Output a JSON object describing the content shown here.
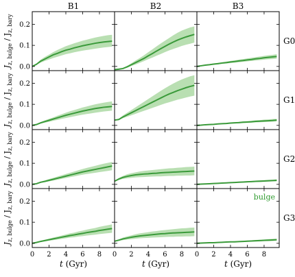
{
  "figure": {
    "columns": [
      "B1",
      "B2",
      "B3"
    ],
    "rows": [
      "G0",
      "G1",
      "G2",
      "G3"
    ],
    "ylabel_main": "J",
    "ylabel_sub1": "z, bulge",
    "ylabel_mid": " / J",
    "ylabel_sub2": "z, bary",
    "xlabel": "t (Gyr)",
    "legend_label": "bulge"
  },
  "colors": {
    "line": "#3a9a3a",
    "band": "#b9dfb2",
    "legend_text": "#2e9a2e"
  },
  "chart_data": {
    "type": "line",
    "grid": false,
    "x_ticks": [
      0,
      2,
      4,
      6,
      8
    ],
    "y_ticks": [
      0.0,
      0.1,
      0.2
    ],
    "xlim": [
      0,
      9.8
    ],
    "ylim": [
      -0.02,
      0.26
    ],
    "x": [
      0,
      0.5,
      1,
      1.5,
      2,
      2.5,
      3,
      3.5,
      4,
      4.5,
      5,
      5.5,
      6,
      6.5,
      7,
      7.5,
      8,
      8.5,
      9,
      9.5
    ],
    "legend": {
      "label": "bulge",
      "panel": "B3-G3",
      "loc": "top-right"
    },
    "panels": [
      {
        "col": "B1",
        "row": "G0",
        "mean": [
          0.0,
          0.01,
          0.025,
          0.035,
          0.045,
          0.055,
          0.062,
          0.07,
          0.077,
          0.082,
          0.088,
          0.093,
          0.098,
          0.102,
          0.106,
          0.11,
          0.113,
          0.116,
          0.118,
          0.12
        ],
        "lower": [
          0.0,
          0.008,
          0.018,
          0.026,
          0.033,
          0.04,
          0.046,
          0.052,
          0.058,
          0.062,
          0.067,
          0.071,
          0.075,
          0.078,
          0.081,
          0.084,
          0.087,
          0.09,
          0.092,
          0.094
        ],
        "upper": [
          0.0,
          0.013,
          0.032,
          0.045,
          0.056,
          0.068,
          0.078,
          0.087,
          0.096,
          0.103,
          0.11,
          0.116,
          0.122,
          0.127,
          0.132,
          0.137,
          0.141,
          0.145,
          0.148,
          0.15
        ]
      },
      {
        "col": "B2",
        "row": "G0",
        "mean": [
          -0.015,
          -0.013,
          -0.01,
          -0.002,
          0.008,
          0.018,
          0.028,
          0.038,
          0.05,
          0.061,
          0.073,
          0.084,
          0.095,
          0.106,
          0.116,
          0.125,
          0.133,
          0.14,
          0.146,
          0.152
        ],
        "lower": [
          -0.015,
          -0.014,
          -0.012,
          -0.006,
          0.002,
          0.009,
          0.017,
          0.025,
          0.034,
          0.042,
          0.051,
          0.059,
          0.068,
          0.076,
          0.083,
          0.09,
          0.097,
          0.103,
          0.108,
          0.113
        ],
        "upper": [
          -0.015,
          -0.012,
          -0.008,
          0.003,
          0.015,
          0.028,
          0.04,
          0.053,
          0.067,
          0.081,
          0.095,
          0.109,
          0.122,
          0.135,
          0.148,
          0.16,
          0.17,
          0.178,
          0.185,
          0.19
        ]
      },
      {
        "col": "B3",
        "row": "G0",
        "mean": [
          0.0,
          0.003,
          0.006,
          0.008,
          0.011,
          0.013,
          0.016,
          0.018,
          0.021,
          0.023,
          0.026,
          0.028,
          0.031,
          0.033,
          0.036,
          0.038,
          0.041,
          0.043,
          0.045,
          0.047
        ],
        "lower": [
          0.0,
          0.002,
          0.004,
          0.006,
          0.008,
          0.01,
          0.012,
          0.014,
          0.016,
          0.018,
          0.02,
          0.022,
          0.024,
          0.026,
          0.028,
          0.03,
          0.032,
          0.034,
          0.035,
          0.037
        ],
        "upper": [
          0.0,
          0.004,
          0.008,
          0.011,
          0.014,
          0.017,
          0.02,
          0.023,
          0.026,
          0.029,
          0.032,
          0.035,
          0.038,
          0.041,
          0.044,
          0.047,
          0.05,
          0.053,
          0.055,
          0.058
        ]
      },
      {
        "col": "B1",
        "row": "G1",
        "mean": [
          0.0,
          0.004,
          0.012,
          0.018,
          0.024,
          0.03,
          0.036,
          0.042,
          0.048,
          0.053,
          0.058,
          0.063,
          0.068,
          0.072,
          0.076,
          0.08,
          0.083,
          0.086,
          0.088,
          0.09
        ],
        "lower": [
          0.0,
          0.003,
          0.008,
          0.013,
          0.017,
          0.022,
          0.026,
          0.031,
          0.035,
          0.039,
          0.043,
          0.047,
          0.051,
          0.054,
          0.057,
          0.06,
          0.063,
          0.066,
          0.068,
          0.07
        ],
        "upper": [
          0.0,
          0.006,
          0.016,
          0.024,
          0.031,
          0.038,
          0.046,
          0.053,
          0.06,
          0.067,
          0.073,
          0.079,
          0.085,
          0.09,
          0.095,
          0.1,
          0.104,
          0.108,
          0.111,
          0.114
        ]
      },
      {
        "col": "B2",
        "row": "G1",
        "mean": [
          0.025,
          0.028,
          0.04,
          0.05,
          0.06,
          0.07,
          0.08,
          0.09,
          0.1,
          0.11,
          0.12,
          0.13,
          0.14,
          0.149,
          0.157,
          0.165,
          0.172,
          0.179,
          0.185,
          0.19
        ],
        "lower": [
          0.025,
          0.026,
          0.034,
          0.041,
          0.048,
          0.055,
          0.062,
          0.069,
          0.076,
          0.083,
          0.09,
          0.097,
          0.104,
          0.11,
          0.116,
          0.122,
          0.127,
          0.132,
          0.137,
          0.141
        ],
        "upper": [
          0.025,
          0.031,
          0.047,
          0.06,
          0.073,
          0.086,
          0.099,
          0.112,
          0.125,
          0.138,
          0.151,
          0.164,
          0.176,
          0.188,
          0.199,
          0.209,
          0.218,
          0.226,
          0.233,
          0.238
        ]
      },
      {
        "col": "B3",
        "row": "G1",
        "mean": [
          0.0,
          0.001,
          0.003,
          0.004,
          0.005,
          0.007,
          0.008,
          0.009,
          0.011,
          0.012,
          0.013,
          0.015,
          0.016,
          0.017,
          0.019,
          0.02,
          0.021,
          0.022,
          0.023,
          0.025
        ],
        "lower": [
          0.0,
          0.001,
          0.002,
          0.003,
          0.004,
          0.005,
          0.006,
          0.007,
          0.008,
          0.009,
          0.01,
          0.011,
          0.012,
          0.013,
          0.014,
          0.015,
          0.016,
          0.017,
          0.018,
          0.019
        ],
        "upper": [
          0.0,
          0.002,
          0.004,
          0.005,
          0.007,
          0.009,
          0.01,
          0.012,
          0.014,
          0.015,
          0.017,
          0.019,
          0.02,
          0.022,
          0.024,
          0.025,
          0.027,
          0.028,
          0.03,
          0.031
        ]
      },
      {
        "col": "B1",
        "row": "G2",
        "mean": [
          0.0,
          0.003,
          0.01,
          0.014,
          0.019,
          0.024,
          0.029,
          0.034,
          0.039,
          0.044,
          0.049,
          0.054,
          0.059,
          0.063,
          0.067,
          0.071,
          0.075,
          0.079,
          0.083,
          0.087
        ],
        "lower": [
          0.0,
          0.002,
          0.007,
          0.01,
          0.014,
          0.018,
          0.022,
          0.026,
          0.03,
          0.034,
          0.038,
          0.042,
          0.046,
          0.049,
          0.052,
          0.055,
          0.058,
          0.061,
          0.064,
          0.067
        ],
        "upper": [
          0.0,
          0.004,
          0.013,
          0.019,
          0.025,
          0.031,
          0.037,
          0.043,
          0.049,
          0.055,
          0.061,
          0.067,
          0.073,
          0.078,
          0.083,
          0.088,
          0.093,
          0.098,
          0.102,
          0.106
        ]
      },
      {
        "col": "B2",
        "row": "G2",
        "mean": [
          0.015,
          0.025,
          0.033,
          0.038,
          0.042,
          0.045,
          0.047,
          0.049,
          0.05,
          0.052,
          0.053,
          0.055,
          0.056,
          0.057,
          0.058,
          0.059,
          0.06,
          0.061,
          0.062,
          0.063
        ],
        "lower": [
          0.015,
          0.021,
          0.026,
          0.029,
          0.031,
          0.033,
          0.034,
          0.035,
          0.036,
          0.037,
          0.038,
          0.038,
          0.039,
          0.04,
          0.04,
          0.041,
          0.041,
          0.042,
          0.042,
          0.043
        ],
        "upper": [
          0.015,
          0.03,
          0.04,
          0.048,
          0.053,
          0.057,
          0.061,
          0.064,
          0.066,
          0.068,
          0.07,
          0.072,
          0.074,
          0.076,
          0.077,
          0.079,
          0.08,
          0.082,
          0.083,
          0.084
        ]
      },
      {
        "col": "B3",
        "row": "G2",
        "mean": [
          0.0,
          0.001,
          0.002,
          0.003,
          0.004,
          0.005,
          0.006,
          0.007,
          0.008,
          0.009,
          0.01,
          0.011,
          0.012,
          0.013,
          0.014,
          0.015,
          0.016,
          0.017,
          0.018,
          0.019
        ],
        "lower": [
          0.0,
          0.001,
          0.002,
          0.002,
          0.003,
          0.004,
          0.005,
          0.005,
          0.006,
          0.007,
          0.008,
          0.008,
          0.009,
          0.01,
          0.011,
          0.011,
          0.012,
          0.013,
          0.014,
          0.014
        ],
        "upper": [
          0.0,
          0.002,
          0.003,
          0.004,
          0.005,
          0.006,
          0.008,
          0.009,
          0.01,
          0.011,
          0.013,
          0.014,
          0.015,
          0.016,
          0.018,
          0.019,
          0.02,
          0.021,
          0.022,
          0.024
        ]
      },
      {
        "col": "B1",
        "row": "G3",
        "mean": [
          0.0,
          0.004,
          0.009,
          0.013,
          0.017,
          0.021,
          0.025,
          0.029,
          0.033,
          0.037,
          0.04,
          0.044,
          0.047,
          0.051,
          0.054,
          0.057,
          0.061,
          0.064,
          0.067,
          0.07
        ],
        "lower": [
          0.0,
          0.003,
          0.006,
          0.009,
          0.012,
          0.015,
          0.018,
          0.021,
          0.024,
          0.027,
          0.029,
          0.032,
          0.034,
          0.037,
          0.039,
          0.041,
          0.044,
          0.046,
          0.048,
          0.05
        ],
        "upper": [
          0.0,
          0.005,
          0.012,
          0.017,
          0.022,
          0.027,
          0.032,
          0.037,
          0.042,
          0.047,
          0.051,
          0.056,
          0.06,
          0.065,
          0.069,
          0.073,
          0.078,
          0.082,
          0.086,
          0.09
        ]
      },
      {
        "col": "B2",
        "row": "G3",
        "mean": [
          0.01,
          0.015,
          0.021,
          0.025,
          0.029,
          0.032,
          0.035,
          0.037,
          0.039,
          0.041,
          0.043,
          0.045,
          0.046,
          0.048,
          0.049,
          0.05,
          0.051,
          0.052,
          0.053,
          0.054
        ],
        "lower": [
          0.01,
          0.012,
          0.015,
          0.018,
          0.02,
          0.022,
          0.024,
          0.025,
          0.026,
          0.027,
          0.028,
          0.029,
          0.03,
          0.031,
          0.031,
          0.032,
          0.032,
          0.033,
          0.033,
          0.034
        ],
        "upper": [
          0.01,
          0.018,
          0.027,
          0.033,
          0.038,
          0.043,
          0.047,
          0.05,
          0.053,
          0.056,
          0.058,
          0.061,
          0.063,
          0.065,
          0.067,
          0.069,
          0.071,
          0.072,
          0.074,
          0.075
        ]
      },
      {
        "col": "B3",
        "row": "G3",
        "mean": [
          0.0,
          0.001,
          0.002,
          0.003,
          0.003,
          0.004,
          0.005,
          0.006,
          0.007,
          0.007,
          0.008,
          0.009,
          0.01,
          0.011,
          0.012,
          0.013,
          0.014,
          0.015,
          0.016,
          0.017
        ],
        "lower": [
          0.0,
          0.0,
          0.001,
          0.002,
          0.002,
          0.003,
          0.003,
          0.004,
          0.005,
          0.005,
          0.006,
          0.006,
          0.007,
          0.008,
          0.008,
          0.009,
          0.01,
          0.01,
          0.011,
          0.012
        ],
        "upper": [
          0.0,
          0.001,
          0.003,
          0.004,
          0.004,
          0.005,
          0.007,
          0.008,
          0.009,
          0.01,
          0.011,
          0.012,
          0.013,
          0.014,
          0.016,
          0.017,
          0.018,
          0.02,
          0.021,
          0.022
        ]
      }
    ]
  }
}
